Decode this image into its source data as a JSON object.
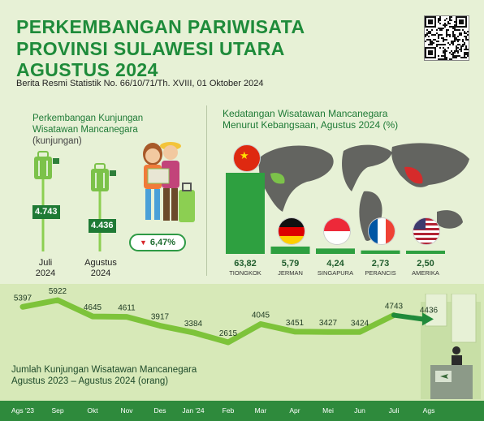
{
  "header": {
    "title_line1": "PERKEMBANGAN PARIWISATA",
    "title_line2": "PROVINSI SULAWESI UTARA",
    "title_line3": "AGUSTUS 2024",
    "subtitle": "Berita Resmi Statistik No. 66/10/71/Th. XVIII, 01 Oktober 2024"
  },
  "colors": {
    "brand_green": "#1e8b3a",
    "bar_green": "#2ea040",
    "line_green": "#7dc33a",
    "decrease_red": "#d7262b"
  },
  "left_panel": {
    "title_line1": "Perkembangan Kunjungan",
    "title_line2": "Wisatawan Mancanegara",
    "unit": "(kunjungan)",
    "change": "6,47%",
    "change_direction": "down",
    "items": [
      {
        "value": "4.743",
        "month": "Juli",
        "year": "2024"
      },
      {
        "value": "4.436",
        "month": "Agustus",
        "year": "2024"
      }
    ]
  },
  "chart_data": [
    {
      "type": "bar",
      "title": "Kedatangan Wisatawan Mancanegara Menurut Kebangsaan, Agustus 2024 (%)",
      "categories": [
        "TIONGKOK",
        "JERMAN",
        "SINGAPURA",
        "PERANCIS",
        "AMERIKA"
      ],
      "values": [
        63.82,
        5.79,
        4.24,
        2.73,
        2.5
      ],
      "value_labels": [
        "63,82",
        "5,79",
        "4,24",
        "2,73",
        "2,50"
      ],
      "flags": [
        "china-flag",
        "germany-flag",
        "singapore-flag",
        "france-flag",
        "usa-flag"
      ]
    },
    {
      "type": "line",
      "title": "Jumlah Kunjungan Wisatawan Mancanegara Agustus 2023 – Agustus 2024 (orang)",
      "x": [
        "Ags '23",
        "Sep",
        "Okt",
        "Nov",
        "Des",
        "Jan '24",
        "Feb",
        "Mar",
        "Apr",
        "Mei",
        "Jun",
        "Juli",
        "Ags"
      ],
      "values": [
        5397,
        5922,
        4645,
        4611,
        3917,
        3384,
        2615,
        4045,
        3451,
        3427,
        3424,
        4743,
        4436
      ],
      "grid": false
    }
  ]
}
